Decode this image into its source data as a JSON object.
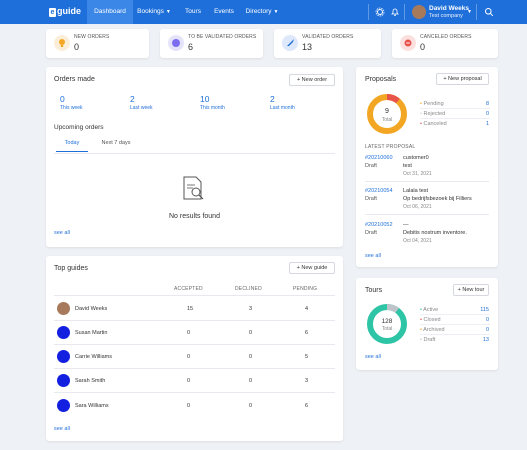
{
  "nav": {
    "logo_mark": "e",
    "logo_text": "guide",
    "dashboard": "Dashboard",
    "bookings": "Bookings",
    "tours": "Tours",
    "events": "Events",
    "directory": "Directory",
    "user_name": "David Weeks",
    "user_company": "Test company"
  },
  "stats": [
    {
      "label": "NEW ORDERS",
      "value": "0",
      "color": "#fbeed8"
    },
    {
      "label": "TO BE VALIDATED ORDERS",
      "value": "6",
      "color": "#e4e3fa"
    },
    {
      "label": "VALIDATED ORDERS",
      "value": "13",
      "color": "#dde9fb"
    },
    {
      "label": "CANCELED ORDERS",
      "value": "0",
      "color": "#fbe0df"
    }
  ],
  "orders": {
    "title": "Orders made",
    "new_btn": "+ New order",
    "periods": [
      {
        "value": "0",
        "label": "This week"
      },
      {
        "value": "2",
        "label": "Last week"
      },
      {
        "value": "10",
        "label": "This month"
      },
      {
        "value": "2",
        "label": "Last month"
      }
    ],
    "upcoming_title": "Upcoming orders",
    "tab_today": "Today",
    "tab_next": "Next 7 days",
    "empty": "No results found",
    "see_all": "see all"
  },
  "guides": {
    "title": "Top guides",
    "new_btn": "+ New guide",
    "col_accepted": "ACCEPTED",
    "col_declined": "DECLINED",
    "col_pending": "PENDING",
    "rows": [
      {
        "name": "David Weeks",
        "accepted": "15",
        "declined": "3",
        "pending": "4"
      },
      {
        "name": "Susan Martin",
        "accepted": "0",
        "declined": "0",
        "pending": "6"
      },
      {
        "name": "Carrie Williams",
        "accepted": "0",
        "declined": "0",
        "pending": "5"
      },
      {
        "name": "Sarah Smith",
        "accepted": "0",
        "declined": "0",
        "pending": "3"
      },
      {
        "name": "Sara Williams",
        "accepted": "0",
        "declined": "0",
        "pending": "6"
      }
    ],
    "see_all": "see all"
  },
  "proposals": {
    "title": "Proposals",
    "new_btn": "+ New proposal",
    "total": "9",
    "total_label": "Total",
    "legend": [
      {
        "label": "Pending",
        "value": "8"
      },
      {
        "label": "Rejected",
        "value": "0"
      },
      {
        "label": "Canceled",
        "value": "1"
      }
    ],
    "latest_title": "LATEST PROPOSAL",
    "items": [
      {
        "id": "#20210060",
        "status": "Draft",
        "title": "customer0",
        "sub": "test",
        "date": "Oct 31, 2021"
      },
      {
        "id": "#20210054",
        "status": "Draft",
        "title": "Lalala test",
        "sub": "Op bedrijfsbezoek bij Filliers",
        "date": "Oct 06, 2021"
      },
      {
        "id": "#20210052",
        "status": "Draft",
        "title": "—",
        "sub": "Debitis nostrum inventore.",
        "date": "Oct 04, 2021"
      }
    ],
    "see_all": "see all"
  },
  "tours": {
    "title": "Tours",
    "new_btn": "+ New tour",
    "total": "128",
    "total_label": "Total",
    "legend": [
      {
        "label": "Active",
        "value": "115"
      },
      {
        "label": "Closed",
        "value": "0"
      },
      {
        "label": "Archived",
        "value": "0"
      },
      {
        "label": "Draft",
        "value": "13"
      }
    ],
    "see_all": "see all"
  }
}
